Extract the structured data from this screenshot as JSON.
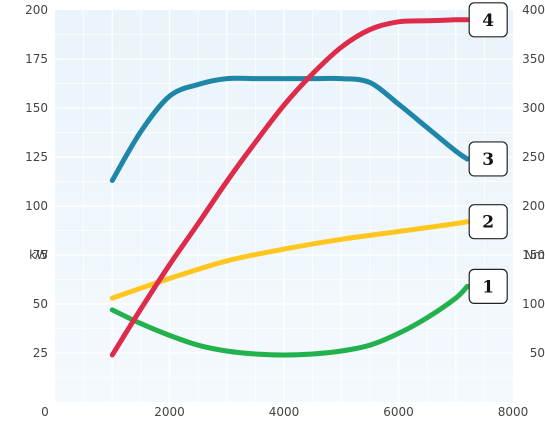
{
  "chart_data": {
    "type": "line",
    "title": "",
    "x_axis": {
      "label": "",
      "range": [
        0,
        8000
      ],
      "ticks": [
        2000,
        4000,
        6000,
        8000
      ]
    },
    "y_left": {
      "label": "kW",
      "range": [
        0,
        200
      ],
      "ticks": [
        25,
        50,
        75,
        100,
        125,
        150,
        175,
        200
      ]
    },
    "y_right": {
      "label": "Nm",
      "range": [
        0,
        400
      ],
      "ticks": [
        50,
        100,
        150,
        200,
        250,
        300,
        350,
        400
      ]
    },
    "origin_label": "0",
    "grid": true,
    "series": [
      {
        "id": "1",
        "axis": "left",
        "color": "#22b14c",
        "x": [
          1000,
          1500,
          2000,
          2500,
          3000,
          3500,
          4000,
          4500,
          5000,
          5500,
          6000,
          6500,
          7000,
          7200
        ],
        "y": [
          47,
          40,
          34,
          29,
          26,
          24.5,
          24,
          24.5,
          26,
          29,
          35,
          43,
          53,
          59
        ]
      },
      {
        "id": "2",
        "axis": "left",
        "color": "#ffc61e",
        "x": [
          1000,
          2000,
          3000,
          4000,
          5000,
          6000,
          7000,
          7200
        ],
        "y": [
          53,
          63,
          72,
          78,
          83,
          87,
          91,
          92
        ]
      },
      {
        "id": "3",
        "axis": "left",
        "color": "#1f86a8",
        "x": [
          1000,
          1500,
          2000,
          2500,
          3000,
          3500,
          4000,
          4500,
          5000,
          5500,
          6000,
          6500,
          7000,
          7200
        ],
        "y": [
          113,
          138,
          156,
          162,
          165,
          165,
          165,
          165,
          165,
          163,
          152,
          140,
          128,
          124
        ]
      },
      {
        "id": "4",
        "axis": "right",
        "color": "#de2b4a",
        "x": [
          1000,
          1500,
          2000,
          2500,
          3000,
          3500,
          4000,
          4500,
          5000,
          5500,
          6000,
          6500,
          7000,
          7200
        ],
        "y": [
          48,
          95,
          140,
          182,
          225,
          265,
          303,
          335,
          362,
          380,
          388,
          389,
          390,
          390
        ]
      }
    ],
    "labels": [
      {
        "text": "4",
        "series": "4"
      },
      {
        "text": "3",
        "series": "3"
      },
      {
        "text": "2",
        "series": "2"
      },
      {
        "text": "1",
        "series": "1"
      }
    ]
  }
}
